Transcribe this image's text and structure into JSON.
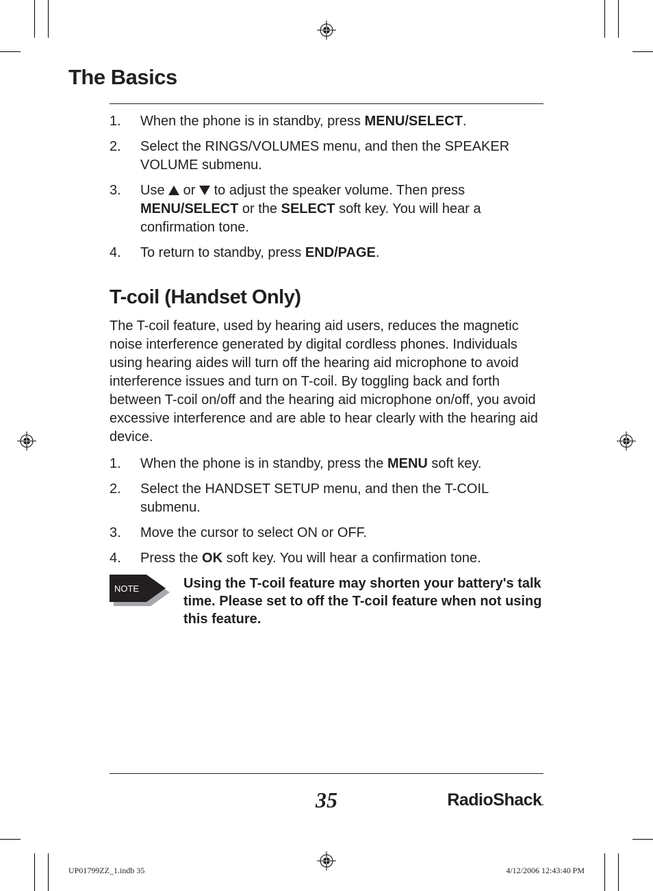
{
  "section_title": "The Basics",
  "list1": [
    {
      "n": "1.",
      "parts": [
        "When the phone is in standby, press ",
        {
          "b": "MENU/SELECT"
        },
        "."
      ]
    },
    {
      "n": "2.",
      "parts": [
        "Select the RINGS/VOLUMES menu, and then the SPEAKER VOLUME submenu."
      ]
    },
    {
      "n": "3.",
      "parts": [
        "Use ",
        {
          "tri": "up"
        },
        " or ",
        {
          "tri": "down"
        },
        " to adjust the speaker volume. Then press ",
        {
          "b": "MENU/SELECT"
        },
        " or the ",
        {
          "b": "SELECT"
        },
        " soft key. You will hear a confirmation tone."
      ]
    },
    {
      "n": "4.",
      "parts": [
        "To return to standby, press ",
        {
          "b": "END/PAGE"
        },
        "."
      ]
    }
  ],
  "subsection_title": "T-coil (Handset Only)",
  "tcoil_intro": "The T-coil feature, used by hearing aid users, reduces the magnetic noise interference generated by digital cordless phones. Individuals using hearing aides will turn off the hearing aid microphone to avoid interference issues and turn on T-coil. By toggling back and forth between T-coil on/off and the hearing aid microphone on/off, you avoid excessive interference and are able to hear clearly with the hearing aid device.",
  "list2": [
    {
      "n": "1.",
      "parts": [
        "When the phone is in standby, press the ",
        {
          "b": "MENU"
        },
        " soft key."
      ]
    },
    {
      "n": "2.",
      "parts": [
        "Select the HANDSET SETUP menu, and then the T-COIL submenu."
      ]
    },
    {
      "n": "3.",
      "parts": [
        "Move the cursor to select ON or OFF."
      ]
    },
    {
      "n": "4.",
      "parts": [
        "Press the ",
        {
          "b": "OK"
        },
        " soft key. You will hear a confirmation tone."
      ]
    }
  ],
  "note_label": "NOTE",
  "note_text": "Using the T-coil feature may shorten your battery's talk time. Please set to off the T-coil feature when not using this feature.",
  "page_number": "35",
  "brand": "RadioShack",
  "slug_left": "UP01799ZZ_1.indb   35",
  "slug_right": "4/12/2006   12:43:40 PM",
  "colors": {
    "text": "#221f20",
    "bg": "#ffffff"
  }
}
